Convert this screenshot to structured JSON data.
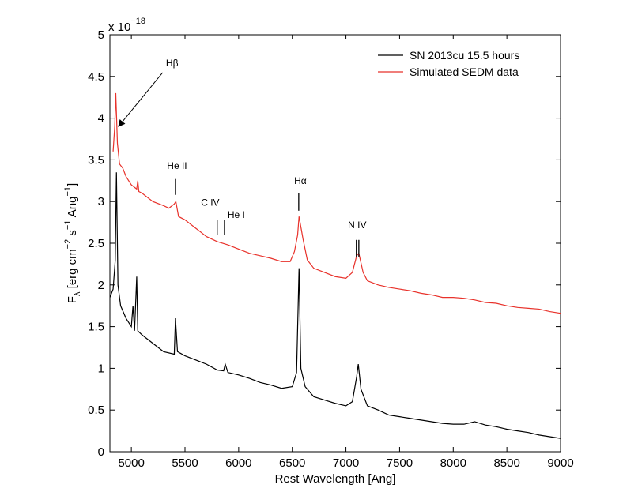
{
  "chart_data": {
    "type": "line",
    "xlabel": "Rest Wavelength [Ang]",
    "ylabel_parts": [
      "F",
      "λ",
      " [erg cm",
      "−2",
      " s",
      "−1",
      " Ang",
      "−1",
      "]"
    ],
    "y_multiplier": {
      "base": "x 10",
      "exponent": "−18"
    },
    "xlim": [
      4800,
      9000
    ],
    "xticks": [
      5000,
      5500,
      6000,
      6500,
      7000,
      7500,
      8000,
      8500,
      9000
    ],
    "ylim": [
      0,
      5
    ],
    "yticks": [
      0,
      0.5,
      1,
      1.5,
      2,
      2.5,
      3,
      3.5,
      4,
      4.5,
      5
    ],
    "legend": "upper right",
    "series": [
      {
        "name": "SN 2013cu 15.5 hours",
        "color": "#000000",
        "x": [
          4800,
          4830,
          4850,
          4861,
          4875,
          4900,
          4950,
          5000,
          5015,
          5030,
          5050,
          5060,
          5100,
          5200,
          5300,
          5400,
          5411,
          5430,
          5500,
          5600,
          5700,
          5800,
          5860,
          5875,
          5900,
          6000,
          6100,
          6200,
          6300,
          6400,
          6500,
          6540,
          6563,
          6580,
          6620,
          6700,
          6800,
          6900,
          7000,
          7060,
          7100,
          7115,
          7140,
          7200,
          7300,
          7400,
          7500,
          7600,
          7700,
          7800,
          7900,
          8000,
          8100,
          8200,
          8300,
          8400,
          8500,
          8600,
          8700,
          8800,
          8900,
          9000
        ],
        "values": [
          1.85,
          1.95,
          2.3,
          3.35,
          2.0,
          1.75,
          1.6,
          1.5,
          1.75,
          1.45,
          2.1,
          1.45,
          1.4,
          1.3,
          1.2,
          1.17,
          1.6,
          1.2,
          1.15,
          1.1,
          1.05,
          0.98,
          0.97,
          1.05,
          0.95,
          0.92,
          0.88,
          0.83,
          0.8,
          0.76,
          0.78,
          0.95,
          2.2,
          1.0,
          0.78,
          0.66,
          0.62,
          0.58,
          0.55,
          0.6,
          0.9,
          1.05,
          0.75,
          0.55,
          0.5,
          0.44,
          0.42,
          0.4,
          0.38,
          0.36,
          0.34,
          0.33,
          0.33,
          0.36,
          0.32,
          0.3,
          0.27,
          0.25,
          0.23,
          0.2,
          0.18,
          0.16
        ]
      },
      {
        "name": "Simulated SEDM data",
        "color": "#e8322b",
        "x": [
          4830,
          4845,
          4855,
          4870,
          4890,
          4920,
          4950,
          5000,
          5050,
          5060,
          5070,
          5100,
          5200,
          5300,
          5350,
          5400,
          5415,
          5440,
          5500,
          5600,
          5700,
          5800,
          5900,
          6000,
          6100,
          6200,
          6300,
          6400,
          6480,
          6520,
          6550,
          6563,
          6600,
          6640,
          6700,
          6800,
          6900,
          7000,
          7060,
          7100,
          7120,
          7160,
          7200,
          7300,
          7400,
          7500,
          7600,
          7700,
          7800,
          7900,
          8000,
          8100,
          8200,
          8300,
          8400,
          8500,
          8600,
          8700,
          8800,
          8900,
          9000
        ],
        "values": [
          3.6,
          3.9,
          4.3,
          3.7,
          3.45,
          3.4,
          3.3,
          3.2,
          3.15,
          3.25,
          3.12,
          3.1,
          3.0,
          2.95,
          2.92,
          2.97,
          3.0,
          2.82,
          2.78,
          2.68,
          2.58,
          2.52,
          2.48,
          2.43,
          2.38,
          2.35,
          2.32,
          2.28,
          2.28,
          2.4,
          2.6,
          2.82,
          2.55,
          2.3,
          2.2,
          2.15,
          2.1,
          2.08,
          2.15,
          2.35,
          2.38,
          2.15,
          2.05,
          2.0,
          1.97,
          1.95,
          1.93,
          1.9,
          1.88,
          1.85,
          1.85,
          1.84,
          1.82,
          1.79,
          1.78,
          1.75,
          1.73,
          1.72,
          1.71,
          1.68,
          1.66
        ]
      }
    ],
    "annotations": [
      {
        "text": "Hβ",
        "label_at": [
          5380,
          4.66
        ],
        "arrow_to": [
          4880,
          3.9
        ]
      },
      {
        "text": "He II",
        "x": [
          5411
        ],
        "y": [
          3.08,
          3.27
        ],
        "label_at": [
          5426,
          3.43
        ]
      },
      {
        "text": "C IV",
        "x": [
          5800
        ],
        "y": [
          2.6,
          2.78
        ],
        "label_at": [
          5735,
          2.99
        ]
      },
      {
        "text": "He I",
        "x": [
          5868
        ],
        "y": [
          2.6,
          2.78
        ],
        "label_at": [
          5978,
          2.84
        ]
      },
      {
        "text": "Hα",
        "x": [
          6560
        ],
        "y": [
          2.89,
          3.1
        ],
        "label_at": [
          6575,
          3.25
        ]
      },
      {
        "text": "N IV",
        "x": [
          7097,
          7120
        ],
        "y": [
          2.34,
          2.54
        ],
        "label_at": [
          7105,
          2.72
        ]
      }
    ]
  }
}
